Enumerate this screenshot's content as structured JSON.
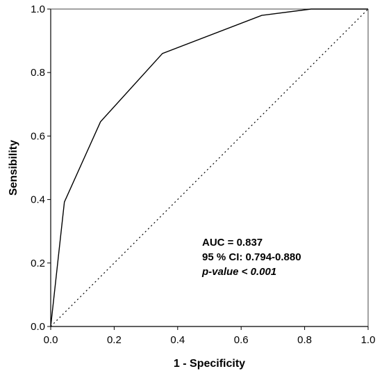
{
  "chart_data": {
    "type": "line",
    "title": "",
    "xlabel": "1 - Specificity",
    "ylabel": "Sensibility",
    "xlim": [
      0.0,
      1.0
    ],
    "ylim": [
      0.0,
      1.0
    ],
    "xticks": [
      "0.0",
      "0.2",
      "0.4",
      "0.6",
      "0.8",
      "1.0"
    ],
    "yticks": [
      "0.0",
      "0.2",
      "0.4",
      "0.6",
      "0.8",
      "1.0"
    ],
    "grid": false,
    "legend": "none",
    "series": [
      {
        "style": "solid",
        "color": "#000000",
        "x": [
          0.0,
          0.043,
          0.157,
          0.352,
          0.665,
          0.82,
          1.0
        ],
        "y": [
          0.0,
          0.392,
          0.645,
          0.86,
          0.98,
          1.0,
          1.0
        ]
      },
      {
        "style": "dotted",
        "color": "#000000",
        "x": [
          0.0,
          1.0
        ],
        "y": [
          0.0,
          1.0
        ]
      }
    ],
    "annotations": [
      "AUC = 0.837",
      "95 % CI: 0.794-0.880",
      "p-value < 0.001"
    ]
  }
}
